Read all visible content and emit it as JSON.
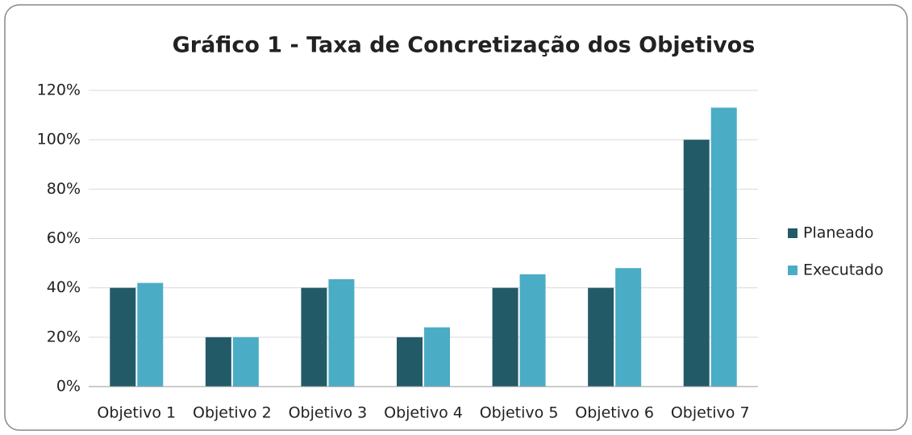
{
  "chart_data": {
    "type": "bar",
    "title": "Gráfico 1 - Taxa de Concretização dos Objetivos",
    "categories": [
      "Objetivo 1",
      "Objetivo 2",
      "Objetivo 3",
      "Objetivo 4",
      "Objetivo 5",
      "Objetivo 6",
      "Objetivo 7"
    ],
    "series": [
      {
        "name": "Planeado",
        "color": "#235a68",
        "values": [
          40,
          20,
          40,
          20,
          40,
          40,
          100
        ]
      },
      {
        "name": "Executado",
        "color": "#4bacc6",
        "values": [
          42,
          20,
          43.5,
          24,
          45.5,
          48,
          113
        ]
      }
    ],
    "ylim": [
      0,
      120
    ],
    "yticks": [
      {
        "value": 0,
        "label": "0%"
      },
      {
        "value": 20,
        "label": "20%"
      },
      {
        "value": 40,
        "label": "40%"
      },
      {
        "value": 60,
        "label": "60%"
      },
      {
        "value": 80,
        "label": "80%"
      },
      {
        "value": 100,
        "label": "100%"
      },
      {
        "value": 120,
        "label": "120%"
      }
    ],
    "grid": true,
    "legend": "right"
  }
}
